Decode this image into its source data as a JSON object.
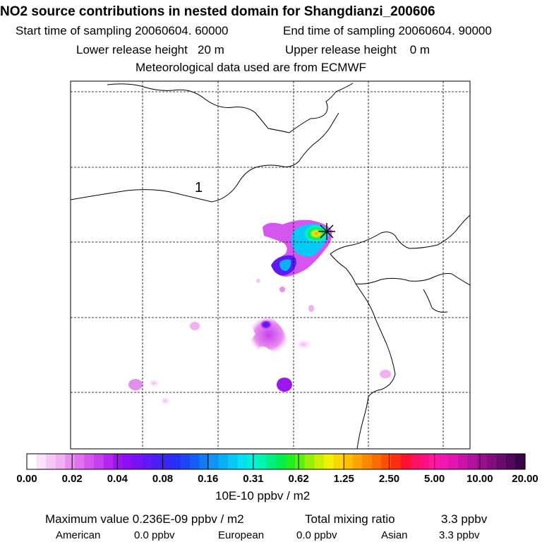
{
  "header": {
    "title": "NO2 source contributions in nested domain for Shangdianzi_200606",
    "start_label": "Start time of sampling 20060604. 60000",
    "end_label": "End time of sampling 20060604. 90000",
    "lower_label": "Lower release height",
    "lower_value": "20 m",
    "upper_label": "Upper release height",
    "upper_value": "0 m",
    "met_label": "Meteorological data used are from ECMWF"
  },
  "map": {
    "region_label": "1",
    "receptor_marker": "asterisk-icon"
  },
  "colorbar": {
    "tick_labels": [
      "0.00",
      "0.02",
      "0.04",
      "0.08",
      "0.16",
      "0.31",
      "0.62",
      "1.25",
      "2.50",
      "5.00",
      "10.00",
      "20.00"
    ],
    "units": "10E-10 ppbv / m2",
    "colors": [
      "#ffffff",
      "#fbe2fb",
      "#f7c8f7",
      "#f1b0f1",
      "#e98fef",
      "#df72ef",
      "#d456ef",
      "#c53ff0",
      "#b426f0",
      "#a010f5",
      "#8a10f5",
      "#7414f5",
      "#5f19f5",
      "#4a1ef5",
      "#3724f5",
      "#2630f5",
      "#1a46f5",
      "#155ef5",
      "#117af5",
      "#0e95f5",
      "#0ab0f5",
      "#06c9f5",
      "#03e0f0",
      "#00f0d8",
      "#00f5b0",
      "#00f080",
      "#00ee50",
      "#20f020",
      "#60f010",
      "#98f008",
      "#c8f000",
      "#f0f000",
      "#f8d800",
      "#fcc000",
      "#fca400",
      "#fc8800",
      "#fc6c00",
      "#fc5000",
      "#fc3010",
      "#fc1030",
      "#fc1060",
      "#fc1080",
      "#fc18a0",
      "#f018b0",
      "#e016b0",
      "#c814a8",
      "#b0129c",
      "#98108c",
      "#800e7c",
      "#680c6c",
      "#50085a",
      "#380448"
    ]
  },
  "stats": {
    "max_label": "Maximum value  0.236E-09 ppbv / m2",
    "total_label": "Total mixing ratio",
    "total_value": "3.3 ppbv",
    "american_label": "American",
    "american_value": "0.0 ppbv",
    "european_label": "European",
    "european_value": "0.0 ppbv",
    "asian_label": "Asian",
    "asian_value": "3.3 ppbv"
  }
}
